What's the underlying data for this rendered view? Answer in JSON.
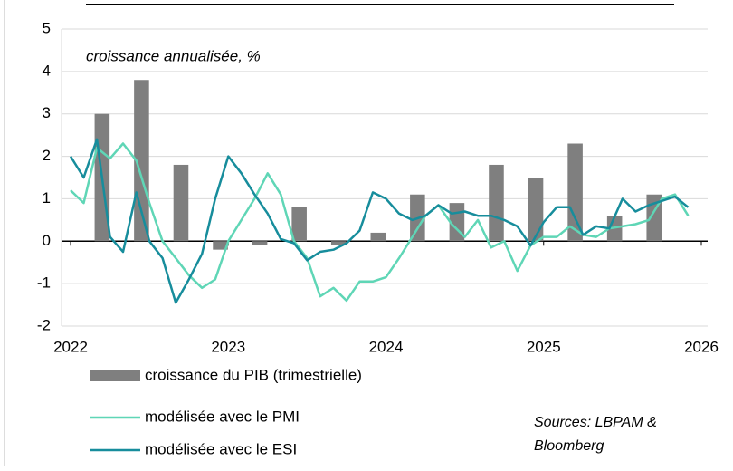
{
  "chart_data": {
    "type": "combo",
    "subtitle": "croissance annualisée, %",
    "annotation": [
      "Sources: LBPAM &",
      "Bloomberg"
    ],
    "xlim": [
      2022,
      2026
    ],
    "xticks": [
      2022,
      2023,
      2024,
      2025,
      2026
    ],
    "ylim": [
      -2,
      5
    ],
    "yticks": [
      -2,
      -1,
      0,
      1,
      2,
      3,
      4,
      5
    ],
    "grid": true,
    "series": [
      {
        "name": "croissance du PIB (trimestrielle)",
        "type": "bar",
        "color": "#7f7f7f",
        "x": [
          2022.2,
          2022.45,
          2022.7,
          2022.95,
          2023.2,
          2023.45,
          2023.7,
          2023.95,
          2024.2,
          2024.45,
          2024.7,
          2024.95,
          2025.2,
          2025.45,
          2025.7
        ],
        "values": [
          3.0,
          3.8,
          1.8,
          -0.2,
          -0.1,
          0.8,
          -0.1,
          0.2,
          1.1,
          0.9,
          1.8,
          1.5,
          2.3,
          0.6,
          1.1
        ]
      },
      {
        "name": "modélisée avec le PMI",
        "type": "line",
        "color": "#5fd6b6",
        "x": [
          2022.0,
          2022.083,
          2022.167,
          2022.25,
          2022.333,
          2022.417,
          2022.5,
          2022.583,
          2022.667,
          2022.75,
          2022.833,
          2022.917,
          2023.0,
          2023.083,
          2023.167,
          2023.25,
          2023.333,
          2023.417,
          2023.5,
          2023.583,
          2023.667,
          2023.75,
          2023.833,
          2023.917,
          2024.0,
          2024.083,
          2024.167,
          2024.25,
          2024.333,
          2024.417,
          2024.5,
          2024.583,
          2024.667,
          2024.75,
          2024.833,
          2024.917,
          2025.0,
          2025.083,
          2025.167,
          2025.25,
          2025.333,
          2025.417,
          2025.5,
          2025.583,
          2025.667,
          2025.75,
          2025.833,
          2025.917
        ],
        "values": [
          1.2,
          0.9,
          2.2,
          1.95,
          2.3,
          1.9,
          0.9,
          0.0,
          -0.4,
          -0.8,
          -1.1,
          -0.9,
          0.0,
          0.5,
          1.0,
          1.6,
          1.1,
          0.0,
          -0.4,
          -1.3,
          -1.1,
          -1.4,
          -0.95,
          -0.95,
          -0.85,
          -0.4,
          0.1,
          0.6,
          0.85,
          0.4,
          0.1,
          0.5,
          -0.15,
          0.0,
          -0.7,
          -0.1,
          0.1,
          0.1,
          0.35,
          0.15,
          0.1,
          0.3,
          0.35,
          0.4,
          0.5,
          1.0,
          1.1,
          0.6
        ]
      },
      {
        "name": "modélisée avec le ESI",
        "type": "line",
        "color": "#178d9c",
        "x": [
          2022.0,
          2022.083,
          2022.167,
          2022.25,
          2022.333,
          2022.417,
          2022.5,
          2022.583,
          2022.667,
          2022.75,
          2022.833,
          2022.917,
          2023.0,
          2023.083,
          2023.167,
          2023.25,
          2023.333,
          2023.417,
          2023.5,
          2023.583,
          2023.667,
          2023.75,
          2023.833,
          2023.917,
          2024.0,
          2024.083,
          2024.167,
          2024.25,
          2024.333,
          2024.417,
          2024.5,
          2024.583,
          2024.667,
          2024.75,
          2024.833,
          2024.917,
          2025.0,
          2025.083,
          2025.167,
          2025.25,
          2025.333,
          2025.417,
          2025.5,
          2025.583,
          2025.667,
          2025.75,
          2025.833,
          2025.917
        ],
        "values": [
          2.0,
          1.5,
          2.4,
          0.1,
          -0.25,
          1.15,
          0.0,
          -0.4,
          -1.45,
          -0.9,
          -0.3,
          1.0,
          2.0,
          1.6,
          1.1,
          0.65,
          0.05,
          -0.05,
          -0.45,
          -0.25,
          -0.2,
          -0.05,
          0.25,
          1.15,
          1.0,
          0.65,
          0.5,
          0.6,
          0.85,
          0.65,
          0.7,
          0.6,
          0.6,
          0.5,
          0.35,
          -0.1,
          0.45,
          0.8,
          0.8,
          0.15,
          0.35,
          0.3,
          1.0,
          0.7,
          0.85,
          0.95,
          1.05,
          0.8
        ]
      }
    ]
  }
}
